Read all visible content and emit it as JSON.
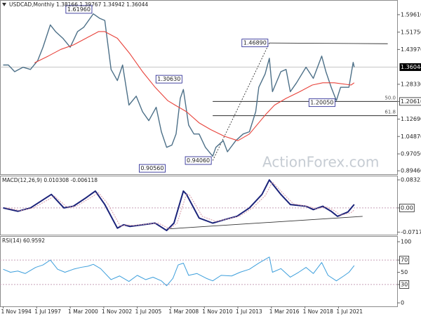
{
  "chart_data": [
    {
      "type": "line",
      "title": "USDCAD,Monthly  1.38166 1.39767 1.34942 1.36044",
      "watermark": "ActionForex.com",
      "xlim": [
        "1994-08-01",
        "2026-03-01"
      ],
      "ylim": [
        0.879,
        1.662
      ],
      "yticks": [
        {
          "value": 1.5961,
          "label": "1.59610"
        },
        {
          "value": 1.5175,
          "label": "1.51750"
        },
        {
          "value": 1.4397,
          "label": "1.43970"
        },
        {
          "value": 1.2833,
          "label": "1.28330"
        },
        {
          "value": 1.2061,
          "label": "1.20610"
        },
        {
          "value": 1.1269,
          "label": "1.12690"
        },
        {
          "value": 1.0487,
          "label": "1.04870"
        },
        {
          "value": 0.9705,
          "label": "0.97050"
        },
        {
          "value": 0.8946,
          "label": "0.89460"
        }
      ],
      "last_price": 1.36044,
      "series": [
        {
          "color": "#4d7088",
          "width": 1.4,
          "x": [
            "1994-11-01",
            "1995-04-01",
            "1995-10-01",
            "1996-06-01",
            "1997-01-01",
            "1997-08-01",
            "1998-01-01",
            "1998-08-01",
            "1999-01-01",
            "1999-08-01",
            "2000-03-01",
            "2000-10-01",
            "2001-04-01",
            "2001-10-01",
            "2002-01-01",
            "2002-07-01",
            "2002-12-01",
            "2003-06-01",
            "2003-12-01",
            "2004-05-01",
            "2004-11-01",
            "2005-06-01",
            "2005-12-01",
            "2006-06-01",
            "2007-01-01",
            "2007-06-01",
            "2007-11-01",
            "2008-04-01",
            "2008-08-01",
            "2008-12-01",
            "2009-03-01",
            "2009-08-01",
            "2010-01-01",
            "2010-06-01",
            "2010-12-01",
            "2011-07-01",
            "2011-10-01",
            "2012-05-01",
            "2012-09-01",
            "2013-05-01",
            "2013-12-01",
            "2014-06-01",
            "2014-12-01",
            "2015-03-01",
            "2015-09-01",
            "2016-01-01",
            "2016-04-01",
            "2016-12-01",
            "2017-05-01",
            "2017-09-01",
            "2018-03-01",
            "2018-12-01",
            "2019-07-01",
            "2020-03-01",
            "2020-07-01",
            "2020-12-01",
            "2021-05-01",
            "2021-09-01",
            "2022-05-01",
            "2022-09-01",
            "2022-10-01"
          ],
          "values": [
            1.37,
            1.37,
            1.34,
            1.36,
            1.35,
            1.39,
            1.45,
            1.55,
            1.52,
            1.49,
            1.45,
            1.52,
            1.54,
            1.58,
            1.6,
            1.58,
            1.57,
            1.35,
            1.3,
            1.37,
            1.19,
            1.23,
            1.16,
            1.12,
            1.18,
            1.07,
            1.0,
            1.01,
            1.06,
            1.22,
            1.26,
            1.1,
            1.06,
            1.06,
            1.0,
            0.96,
            1.0,
            1.03,
            0.98,
            1.03,
            1.06,
            1.07,
            1.16,
            1.27,
            1.33,
            1.4,
            1.25,
            1.34,
            1.35,
            1.25,
            1.29,
            1.36,
            1.31,
            1.41,
            1.34,
            1.27,
            1.21,
            1.27,
            1.27,
            1.38166,
            1.36044
          ]
        },
        {
          "color": "#e8423a",
          "width": 1.1,
          "x": [
            "1997-05-01",
            "1998-06-01",
            "1999-06-01",
            "2000-06-01",
            "2001-06-01",
            "2002-06-01",
            "2002-12-01",
            "2003-12-01",
            "2004-12-01",
            "2005-12-01",
            "2006-12-01",
            "2007-12-01",
            "2008-07-01",
            "2009-06-01",
            "2010-06-01",
            "2011-05-01",
            "2012-06-01",
            "2013-07-01",
            "2014-06-01",
            "2015-10-01",
            "2016-06-01",
            "2017-05-01",
            "2018-06-01",
            "2019-06-01",
            "2020-04-01",
            "2021-03-01",
            "2022-07-01",
            "2022-10-01"
          ],
          "values": [
            1.38,
            1.41,
            1.44,
            1.46,
            1.49,
            1.52,
            1.52,
            1.49,
            1.42,
            1.34,
            1.27,
            1.21,
            1.19,
            1.16,
            1.11,
            1.08,
            1.05,
            1.03,
            1.06,
            1.15,
            1.19,
            1.22,
            1.25,
            1.28,
            1.29,
            1.29,
            1.28,
            1.29
          ]
        }
      ],
      "annotations": [
        {
          "text": "1.61960",
          "x": "2002-01-01",
          "y": 1.6196
        },
        {
          "text": "1.30630",
          "x": "2009-03-01",
          "y": 1.3063
        },
        {
          "text": "0.90560",
          "x": "2007-11-01",
          "y": 0.9056
        },
        {
          "text": "0.94060",
          "x": "2011-07-01",
          "y": 0.9406
        },
        {
          "text": "1.46890",
          "x": "2016-01-01",
          "y": 1.4689
        },
        {
          "text": "1.20050",
          "x": "2021-05-01",
          "y": 1.2005
        }
      ],
      "levels": [
        {
          "label": "50.0",
          "value": 1.2061,
          "from": "2011-07-01"
        },
        {
          "label": "61.8",
          "value": 1.1424,
          "from": "2011-07-01"
        }
      ],
      "trendlines": [
        {
          "color": "#333333",
          "dash": true,
          "x": [
            "2011-07-01",
            "2016-01-01"
          ],
          "values": [
            0.9406,
            1.4689
          ]
        },
        {
          "color": "#333333",
          "dash": false,
          "x": [
            "2016-01-01",
            "2025-06-01"
          ],
          "values": [
            1.4689,
            1.4655
          ]
        }
      ]
    },
    {
      "type": "line",
      "title": "MACD(12,26,9) 0.010308 -0.006118",
      "xlim": [
        "1994-08-01",
        "2026-03-01"
      ],
      "ylim": [
        -0.0794,
        0.0957
      ],
      "yticks": [
        0.083235,
        {
          "value": 0,
          "label": "0.00"
        },
        -0.071752
      ],
      "levels": [
        0
      ],
      "series": [
        {
          "color": "#1b237a",
          "width": 2,
          "x": [
            "1994-11-01",
            "1996-01-01",
            "1997-01-01",
            "1998-09-01",
            "1999-09-01",
            "2000-06-01",
            "2001-06-01",
            "2002-03-01",
            "2002-12-01",
            "2003-12-01",
            "2004-06-01",
            "2004-12-01",
            "2005-12-01",
            "2006-12-01",
            "2007-11-01",
            "2008-06-01",
            "2009-03-01",
            "2009-06-01",
            "2010-06-01",
            "2011-07-01",
            "2012-06-01",
            "2013-06-01",
            "2014-06-01",
            "2015-06-01",
            "2016-01-01",
            "2016-12-01",
            "2017-09-01",
            "2018-12-01",
            "2019-07-01",
            "2020-04-01",
            "2020-12-01",
            "2021-06-01",
            "2022-04-01",
            "2022-10-01"
          ],
          "values": [
            0.0,
            -0.01,
            0.0,
            0.04,
            0.0,
            0.005,
            0.03,
            0.05,
            0.01,
            -0.06,
            -0.05,
            -0.055,
            -0.05,
            -0.045,
            -0.067,
            -0.045,
            0.05,
            0.04,
            -0.03,
            -0.045,
            -0.035,
            -0.025,
            0.0,
            0.04,
            0.083,
            0.04,
            0.01,
            0.005,
            -0.005,
            0.005,
            -0.01,
            -0.025,
            -0.012,
            0.010308
          ]
        },
        {
          "color": "#d89aa6",
          "width": 1,
          "dash": true,
          "x": [
            "1995-02-01",
            "1996-04-01",
            "1997-04-01",
            "1998-12-01",
            "1999-12-01",
            "2000-09-01",
            "2001-09-01",
            "2002-06-01",
            "2003-03-01",
            "2004-03-01",
            "2004-09-01",
            "2005-03-01",
            "2006-03-01",
            "2007-03-01",
            "2008-02-01",
            "2008-09-01",
            "2009-06-01",
            "2009-09-01",
            "2010-09-01",
            "2011-10-01",
            "2012-09-01",
            "2013-09-01",
            "2014-09-01",
            "2015-09-01",
            "2016-04-01",
            "2017-03-01",
            "2017-12-01",
            "2019-03-01",
            "2019-10-01",
            "2020-07-01",
            "2021-03-01",
            "2021-09-01",
            "2022-07-01",
            "2022-10-01"
          ],
          "values": [
            0.0,
            -0.008,
            0.0,
            0.035,
            0.002,
            0.005,
            0.028,
            0.045,
            0.012,
            -0.055,
            -0.05,
            -0.052,
            -0.048,
            -0.045,
            -0.062,
            -0.045,
            0.042,
            0.038,
            -0.025,
            -0.04,
            -0.033,
            -0.024,
            0.0,
            0.036,
            0.077,
            0.04,
            0.012,
            0.004,
            -0.003,
            0.004,
            -0.008,
            -0.022,
            -0.014,
            -0.006118
          ]
        }
      ],
      "trendlines": [
        {
          "color": "#333333",
          "dash": false,
          "x": [
            "2007-11-01",
            "2023-06-01"
          ],
          "values": [
            -0.0625,
            -0.025
          ]
        }
      ]
    },
    {
      "type": "line",
      "title": "RSI(14) 60.9592",
      "xlim": [
        "1994-08-01",
        "2026-03-01"
      ],
      "ylim": [
        -5.7,
        109.2
      ],
      "yticks": [
        100,
        70,
        50,
        30,
        0
      ],
      "levels": [
        70,
        30
      ],
      "xticks": [
        {
          "value": "1994-11-01",
          "label": "1 Nov 1994"
        },
        {
          "value": "1997-07-01",
          "label": "1 Jul 1997"
        },
        {
          "value": "2000-03-01",
          "label": "1 Mar 2000"
        },
        {
          "value": "2002-11-01",
          "label": "1 Nov 2002"
        },
        {
          "value": "2005-07-01",
          "label": "1 Jul 2005"
        },
        {
          "value": "2008-03-01",
          "label": "1 Mar 2008"
        },
        {
          "value": "2010-11-01",
          "label": "1 Nov 2010"
        },
        {
          "value": "2013-07-01",
          "label": "1 Jul 2013"
        },
        {
          "value": "2016-03-01",
          "label": "1 Mar 2016"
        },
        {
          "value": "2018-11-01",
          "label": "1 Nov 2018"
        },
        {
          "value": "2021-07-01",
          "label": "1 Jul 2021"
        }
      ],
      "series": [
        {
          "color": "#3d9fdc",
          "width": 1,
          "x": [
            "1994-11-01",
            "1995-06-01",
            "1996-01-01",
            "1996-08-01",
            "1997-06-01",
            "1998-01-01",
            "1998-08-01",
            "1999-03-01",
            "1999-10-01",
            "2000-06-01",
            "2001-01-01",
            "2001-08-01",
            "2002-01-01",
            "2002-08-01",
            "2003-06-01",
            "2004-02-01",
            "2004-11-01",
            "2005-07-01",
            "2006-03-01",
            "2006-10-01",
            "2007-06-01",
            "2007-11-01",
            "2008-05-01",
            "2008-10-01",
            "2009-03-01",
            "2009-08-01",
            "2010-04-01",
            "2011-01-01",
            "2011-07-01",
            "2012-03-01",
            "2013-01-01",
            "2013-09-01",
            "2014-06-01",
            "2015-03-01",
            "2016-01-01",
            "2016-04-01",
            "2016-12-01",
            "2017-09-01",
            "2018-05-01",
            "2018-12-01",
            "2019-07-01",
            "2020-03-01",
            "2020-09-01",
            "2021-05-01",
            "2021-12-01",
            "2022-05-01",
            "2022-10-01"
          ],
          "values": [
            55,
            50,
            52,
            48,
            58,
            62,
            70,
            55,
            50,
            55,
            58,
            60,
            63,
            56,
            38,
            44,
            35,
            45,
            38,
            42,
            36,
            28,
            40,
            62,
            65,
            45,
            48,
            40,
            36,
            45,
            44,
            50,
            55,
            65,
            75,
            50,
            56,
            42,
            50,
            58,
            48,
            66,
            45,
            36,
            44,
            50,
            60.9592
          ]
        }
      ]
    }
  ]
}
